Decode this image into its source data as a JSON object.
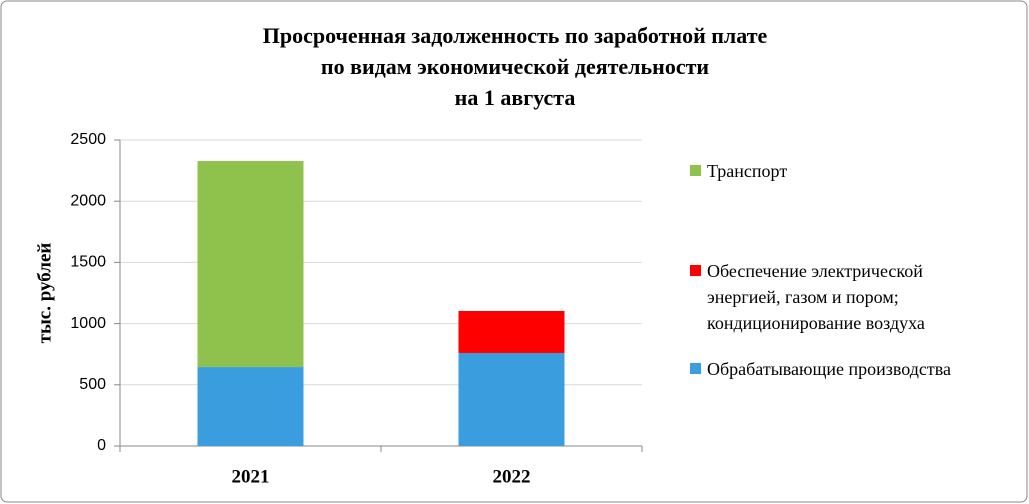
{
  "chart_data": {
    "type": "stacked_bar",
    "title": [
      "Просроченная задолженность по заработной плате",
      "по видам экономической деятельности",
      "на 1 августа"
    ],
    "y_label": "тыс. рублей",
    "categories": [
      "2021",
      "2022"
    ],
    "series": [
      {
        "name": "Обрабатывающие производства",
        "color": "#3a9ede",
        "values": [
          645,
          760
        ]
      },
      {
        "name": "Обеспечение электрической энергией, газом и пором; кондиционирование воздуха",
        "color": "#ff0000",
        "values": [
          0,
          343
        ]
      },
      {
        "name": "Транспорт",
        "color": "#8fc14d",
        "values": [
          1683,
          0
        ]
      }
    ],
    "ylim": [
      0,
      2500
    ],
    "yticks": [
      0,
      500,
      1000,
      1500,
      2000,
      2500
    ],
    "grid": true
  }
}
